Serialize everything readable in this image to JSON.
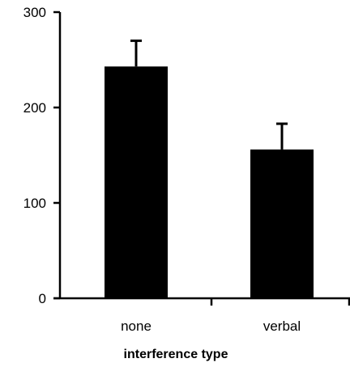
{
  "chart_data": {
    "type": "bar",
    "categories": [
      "none",
      "verbal"
    ],
    "values": [
      243,
      156
    ],
    "error_upper": [
      270,
      183
    ],
    "title": "",
    "xlabel": "interference type",
    "ylabel": "",
    "ylim": [
      0,
      300
    ],
    "yticks": [
      0,
      100,
      200,
      300
    ],
    "grid": false,
    "legend": "none",
    "colors": {
      "bar": "#000000",
      "axis": "#000000",
      "background": "#ffffff"
    }
  }
}
